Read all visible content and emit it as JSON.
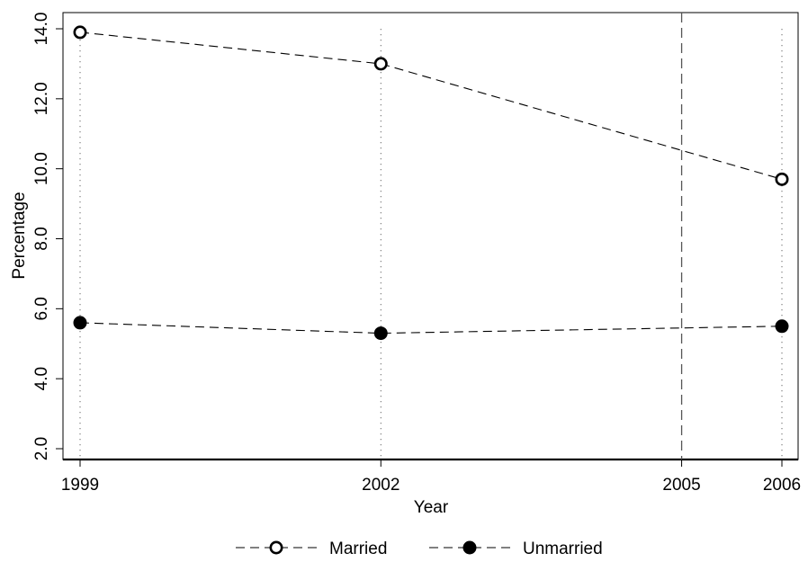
{
  "chart_data": {
    "type": "line",
    "title": "",
    "xlabel": "Year",
    "ylabel": "Percentage",
    "x": [
      1999,
      2002,
      2006
    ],
    "x_ticks": [
      "1999",
      "2002",
      "2005",
      "2006"
    ],
    "xlim": [
      1999,
      2006
    ],
    "ylim": [
      2.0,
      14.0
    ],
    "y_ticks": [
      "2.0",
      "4.0",
      "6.0",
      "8.0",
      "10.0",
      "12.0",
      "14.0"
    ],
    "reference_line_x": 2005,
    "series": [
      {
        "name": "Married",
        "marker": "open-circle",
        "values": [
          13.9,
          13.0,
          9.7
        ]
      },
      {
        "name": "Unmarried",
        "marker": "filled-circle",
        "values": [
          5.6,
          5.3,
          5.5
        ]
      }
    ],
    "grid": false,
    "legend_position": "bottom",
    "colors": {
      "line": "#000000",
      "reference_line": "#555555",
      "background": "#ffffff"
    }
  }
}
